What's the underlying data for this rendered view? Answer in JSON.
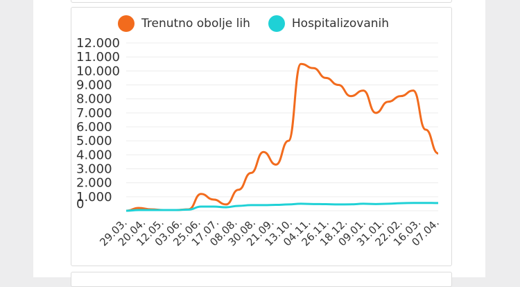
{
  "chart_data": {
    "type": "line",
    "title": "",
    "xlabel": "",
    "ylabel": "",
    "ylim": [
      0,
      12000
    ],
    "yticks": [
      "0",
      "1.000",
      "2.000",
      "3.000",
      "4.000",
      "5.000",
      "6.000",
      "7.000",
      "8.000",
      "9.000",
      "10.000",
      "11.000",
      "12.000"
    ],
    "x_tick_labels": [
      "29.03.",
      "20.04.",
      "12.05.",
      "03.06.",
      "25.06.",
      "17.07.",
      "08.08.",
      "30.08.",
      "21.09.",
      "13.10.",
      "04.11.",
      "26.11.",
      "18.12.",
      "09.01.",
      "31.01.",
      "22.02.",
      "16.03.",
      "07.04."
    ],
    "legend_position": "top",
    "series": [
      {
        "name": "Trenutno obolje lih",
        "color": "#f26b1d",
        "values": [
          0,
          200,
          100,
          50,
          50,
          100,
          1200,
          800,
          450,
          1500,
          2700,
          4200,
          3300,
          5000,
          10500,
          10200,
          9500,
          9000,
          8200,
          8600,
          7000,
          7800,
          8200,
          8600,
          5800,
          4100
        ]
      },
      {
        "name": "Hospitalizovanih",
        "color": "#1fd1d6",
        "values": [
          0,
          50,
          50,
          50,
          50,
          80,
          300,
          300,
          250,
          350,
          400,
          400,
          420,
          450,
          500,
          480,
          470,
          450,
          460,
          500,
          480,
          500,
          540,
          560,
          560,
          550
        ]
      }
    ]
  }
}
